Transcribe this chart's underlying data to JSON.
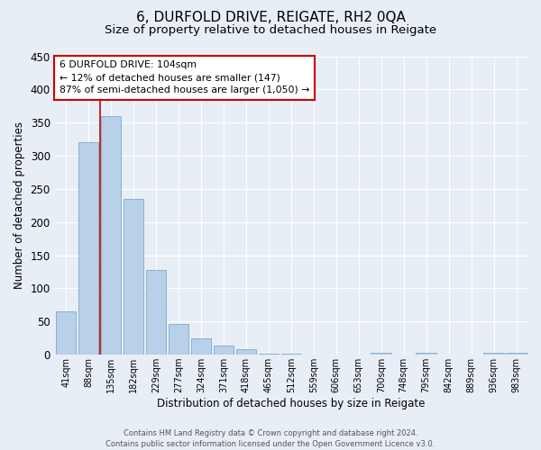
{
  "title": "6, DURFOLD DRIVE, REIGATE, RH2 0QA",
  "subtitle": "Size of property relative to detached houses in Reigate",
  "xlabel": "Distribution of detached houses by size in Reigate",
  "ylabel": "Number of detached properties",
  "categories": [
    "41sqm",
    "88sqm",
    "135sqm",
    "182sqm",
    "229sqm",
    "277sqm",
    "324sqm",
    "371sqm",
    "418sqm",
    "465sqm",
    "512sqm",
    "559sqm",
    "606sqm",
    "653sqm",
    "700sqm",
    "748sqm",
    "795sqm",
    "842sqm",
    "889sqm",
    "936sqm",
    "983sqm"
  ],
  "values": [
    65,
    320,
    360,
    235,
    128,
    47,
    25,
    14,
    8,
    2,
    1,
    0,
    0,
    0,
    3,
    0,
    3,
    0,
    0,
    3,
    3
  ],
  "bar_color": "#b8d0e8",
  "bar_edge_color": "#6a9fc8",
  "ylim": [
    0,
    450
  ],
  "yticks": [
    0,
    50,
    100,
    150,
    200,
    250,
    300,
    350,
    400,
    450
  ],
  "vline_x": 1.5,
  "vline_color": "#cc0000",
  "annotation_title": "6 DURFOLD DRIVE: 104sqm",
  "annotation_line1": "← 12% of detached houses are smaller (147)",
  "annotation_line2": "87% of semi-detached houses are larger (1,050) →",
  "annotation_box_color": "#cc0000",
  "footer_line1": "Contains HM Land Registry data © Crown copyright and database right 2024.",
  "footer_line2": "Contains public sector information licensed under the Open Government Licence v3.0.",
  "background_color": "#e8eef5",
  "plot_bg_color": "#e8eef5",
  "grid_color": "#ffffff",
  "title_fontsize": 11,
  "subtitle_fontsize": 9.5,
  "ylabel_text": "Number of detached properties"
}
